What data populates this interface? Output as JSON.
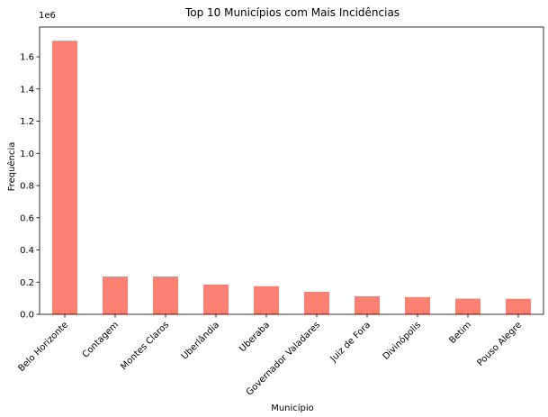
{
  "chart_data": {
    "type": "bar",
    "title": "Top 10 Municípios com Mais Incidências",
    "xlabel": "Município",
    "ylabel": "Frequência",
    "offset_label": "1e6",
    "categories": [
      "Belo Horizonte",
      "Contagem",
      "Montes Claros",
      "Uberlândia",
      "Uberaba",
      "Governador Valadares",
      "Juiz de Fora",
      "Divinópolis",
      "Betim",
      "Pouso Alegre"
    ],
    "values": [
      1700000,
      235000,
      235000,
      185000,
      175000,
      140000,
      113000,
      107000,
      98000,
      97000
    ],
    "ylim": [
      0,
      1785000
    ],
    "yticks": [
      0,
      200000,
      400000,
      600000,
      800000,
      1000000,
      1200000,
      1400000,
      1600000
    ],
    "ytick_labels": [
      "0.0",
      "0.2",
      "0.4",
      "0.6",
      "0.8",
      "1.0",
      "1.2",
      "1.4",
      "1.6"
    ],
    "bar_color": "#fa8072",
    "grid": false,
    "legend": "none"
  }
}
